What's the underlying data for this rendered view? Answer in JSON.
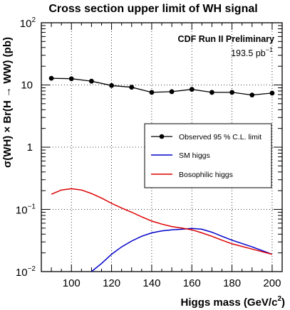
{
  "chart_data": {
    "type": "line",
    "title": "Cross section upper limit of WH signal",
    "xlabel": "Higgs mass (GeV/c",
    "xlabel_sup": "2",
    "xlabel_close": ")",
    "ylabel": "σ(WH) × Br(H → WW) (pb)",
    "annotation": {
      "line1": "CDF Run II Preliminary",
      "line2": "193.5 pb",
      "line2_sup": "−1"
    },
    "xlim": [
      85,
      205
    ],
    "ylim": [
      0.01,
      100
    ],
    "yscale": "log",
    "grid": true,
    "x_ticks": [
      {
        "value": 100,
        "label": "100"
      },
      {
        "value": 120,
        "label": "120"
      },
      {
        "value": 140,
        "label": "140"
      },
      {
        "value": 160,
        "label": "160"
      },
      {
        "value": 180,
        "label": "180"
      },
      {
        "value": 200,
        "label": "200"
      }
    ],
    "y_ticks": [
      {
        "value": 0.01,
        "base": "10",
        "exp": "−2"
      },
      {
        "value": 0.1,
        "base": "10",
        "exp": "−1"
      },
      {
        "value": 1,
        "base": "1",
        "exp": ""
      },
      {
        "value": 10,
        "base": "10",
        "exp": ""
      },
      {
        "value": 100,
        "base": "10",
        "exp": "2"
      }
    ],
    "legend_placement": "right",
    "series": [
      {
        "name": "Observed 95 % C.L. limit",
        "color": "#000000",
        "marker": "circle",
        "x": [
          90,
          100,
          110,
          120,
          130,
          140,
          150,
          160,
          170,
          180,
          190,
          200
        ],
        "y": [
          12.8,
          12.6,
          11.5,
          9.8,
          9.2,
          7.6,
          7.8,
          8.5,
          7.6,
          7.6,
          6.9,
          7.4
        ]
      },
      {
        "name": "SM higgs",
        "color": "#0000cc",
        "marker": "none",
        "x": [
          110,
          115,
          120,
          125,
          130,
          135,
          140,
          145,
          150,
          155,
          160,
          165,
          170,
          175,
          180,
          190,
          200
        ],
        "y": [
          0.01,
          0.0135,
          0.019,
          0.025,
          0.031,
          0.037,
          0.042,
          0.045,
          0.047,
          0.048,
          0.0495,
          0.048,
          0.043,
          0.037,
          0.032,
          0.025,
          0.019
        ]
      },
      {
        "name": "Bosophilic higgs",
        "color": "#dd0000",
        "marker": "none",
        "x": [
          90,
          95,
          100,
          105,
          110,
          115,
          120,
          125,
          130,
          135,
          140,
          145,
          150,
          155,
          160,
          165,
          170,
          175,
          180,
          190,
          200
        ],
        "y": [
          0.175,
          0.205,
          0.215,
          0.205,
          0.18,
          0.152,
          0.125,
          0.105,
          0.09,
          0.076,
          0.065,
          0.058,
          0.053,
          0.05,
          0.047,
          0.042,
          0.037,
          0.032,
          0.028,
          0.023,
          0.019
        ]
      }
    ]
  }
}
